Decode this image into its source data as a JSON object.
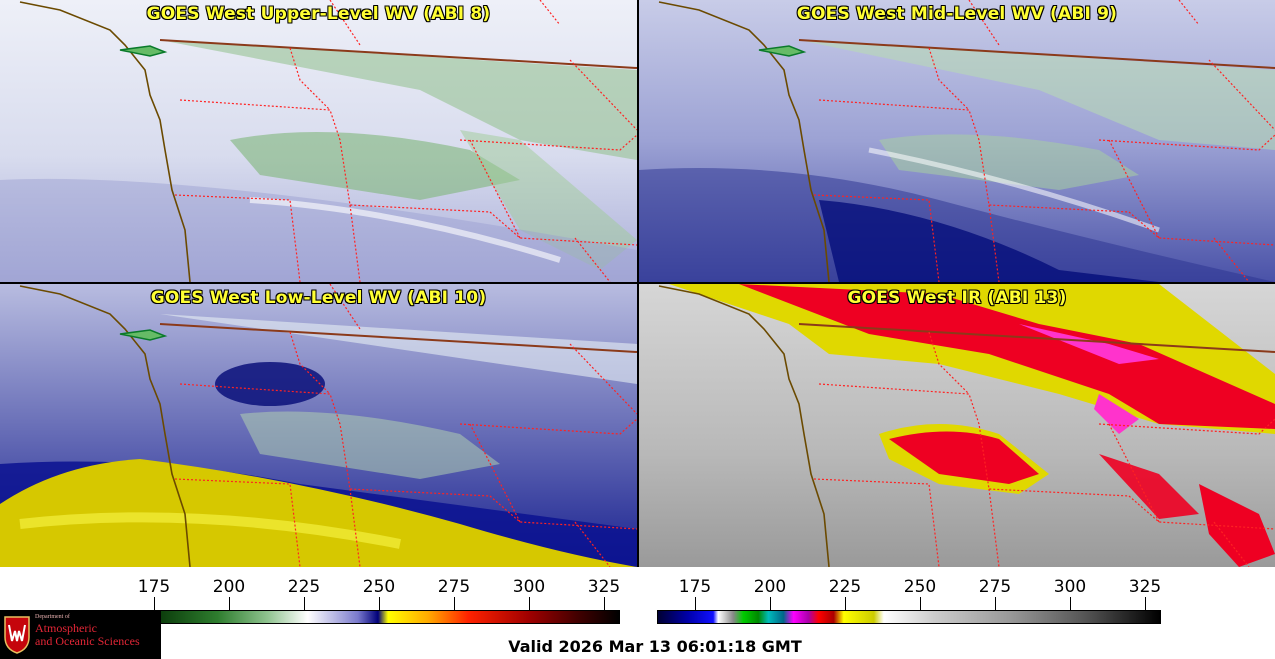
{
  "panels": [
    {
      "title": "GOES West Upper-Level WV (ABI 8)",
      "product": "ABI band 8 water vapor"
    },
    {
      "title": "GOES West Mid-Level WV (ABI 9)",
      "product": "ABI band 9 water vapor"
    },
    {
      "title": "GOES West Low-Level WV (ABI 10)",
      "product": "ABI band 10 water vapor"
    },
    {
      "title": "GOES West IR (ABI 13)",
      "product": "ABI band 13 infrared"
    }
  ],
  "colorbars": {
    "left": {
      "ticks": [
        "175",
        "200",
        "225",
        "250",
        "275",
        "300",
        "325"
      ]
    },
    "right": {
      "ticks": [
        "175",
        "200",
        "225",
        "250",
        "275",
        "300",
        "325"
      ]
    }
  },
  "logo": {
    "dept": "Department of",
    "line1": "Atmospheric",
    "line2": "and Oceanic Sciences"
  },
  "valid_time": "Valid 2026 Mar 13 06:01:18 GMT",
  "colors": {
    "title_text": "#ffff33",
    "state_borders": "#ff2222",
    "coastline": "#6b4a00",
    "intl_border": "#8b3a1a"
  }
}
